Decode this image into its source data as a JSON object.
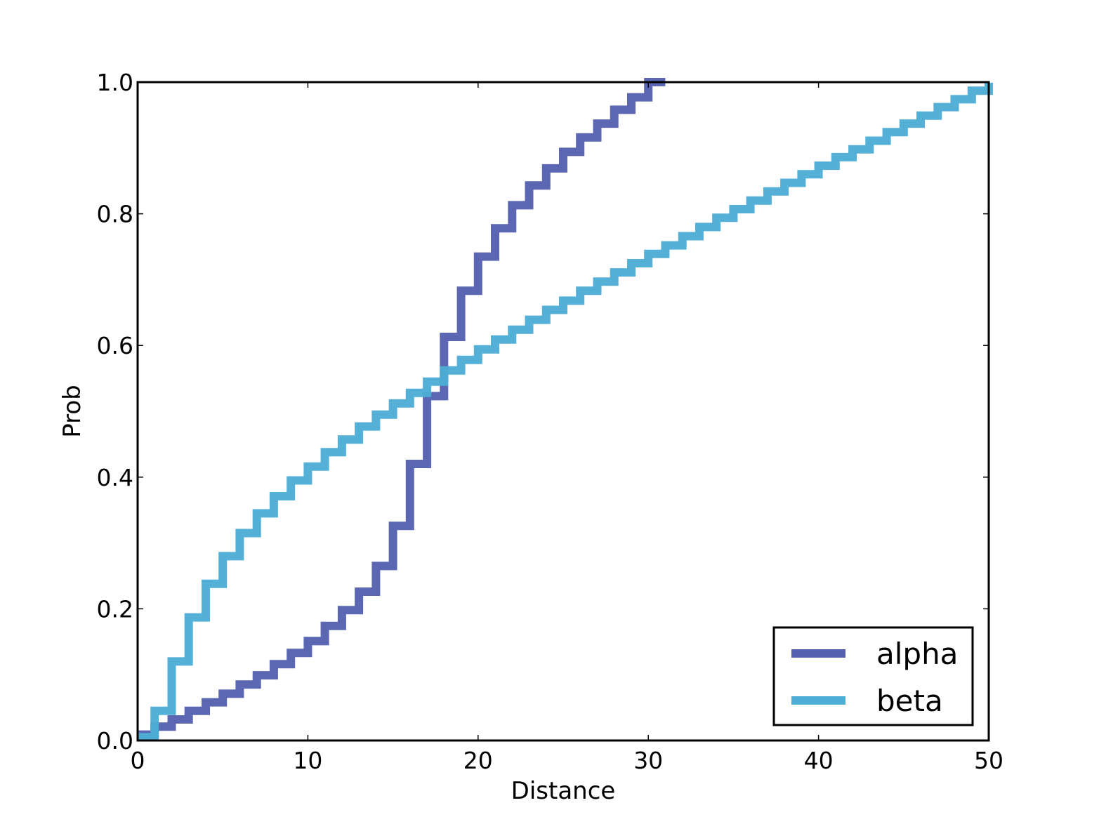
{
  "chart_data": {
    "type": "line",
    "step": true,
    "title": "",
    "xlabel": "Distance",
    "ylabel": "Prob",
    "xlim": [
      0,
      50
    ],
    "ylim": [
      0,
      1.0
    ],
    "xticks": [
      0,
      10,
      20,
      30,
      40,
      50
    ],
    "yticks": [
      0.0,
      0.2,
      0.4,
      0.6,
      0.8,
      1.0
    ],
    "xtick_labels": [
      "0",
      "10",
      "20",
      "30",
      "40",
      "50"
    ],
    "ytick_labels": [
      "0.0",
      "0.2",
      "0.4",
      "0.6",
      "0.8",
      "1.0"
    ],
    "grid": false,
    "legend_position": "lower-right",
    "series": [
      {
        "name": "alpha",
        "color": "#5561b0",
        "x": [
          0,
          1,
          2,
          3,
          4,
          5,
          6,
          7,
          8,
          9,
          10,
          11,
          12,
          13,
          14,
          15,
          16,
          17,
          18,
          19,
          20,
          21,
          22,
          23,
          24,
          25,
          26,
          27,
          28,
          29,
          30
        ],
        "y": [
          0.009,
          0.021,
          0.032,
          0.045,
          0.058,
          0.071,
          0.085,
          0.099,
          0.116,
          0.133,
          0.151,
          0.174,
          0.198,
          0.226,
          0.265,
          0.326,
          0.42,
          0.523,
          0.613,
          0.683,
          0.735,
          0.778,
          0.813,
          0.843,
          0.869,
          0.894,
          0.916,
          0.937,
          0.958,
          0.977,
          1.0
        ]
      },
      {
        "name": "beta",
        "color": "#4dadd4",
        "x": [
          0,
          1,
          2,
          3,
          4,
          5,
          6,
          7,
          8,
          9,
          10,
          11,
          12,
          13,
          14,
          15,
          16,
          17,
          18,
          19,
          20,
          21,
          22,
          23,
          24,
          25,
          26,
          27,
          28,
          29,
          30,
          31,
          32,
          33,
          34,
          35,
          36,
          37,
          38,
          39,
          40,
          41,
          42,
          43,
          44,
          45,
          46,
          47,
          48,
          49,
          50
        ],
        "y": [
          0.005,
          0.045,
          0.12,
          0.187,
          0.238,
          0.28,
          0.315,
          0.345,
          0.371,
          0.395,
          0.416,
          0.438,
          0.457,
          0.477,
          0.495,
          0.512,
          0.528,
          0.545,
          0.562,
          0.578,
          0.594,
          0.609,
          0.624,
          0.639,
          0.654,
          0.668,
          0.683,
          0.697,
          0.711,
          0.725,
          0.739,
          0.752,
          0.766,
          0.78,
          0.794,
          0.807,
          0.82,
          0.834,
          0.847,
          0.86,
          0.873,
          0.886,
          0.898,
          0.911,
          0.924,
          0.937,
          0.949,
          0.962,
          0.974,
          0.987,
          0.999
        ]
      }
    ]
  }
}
